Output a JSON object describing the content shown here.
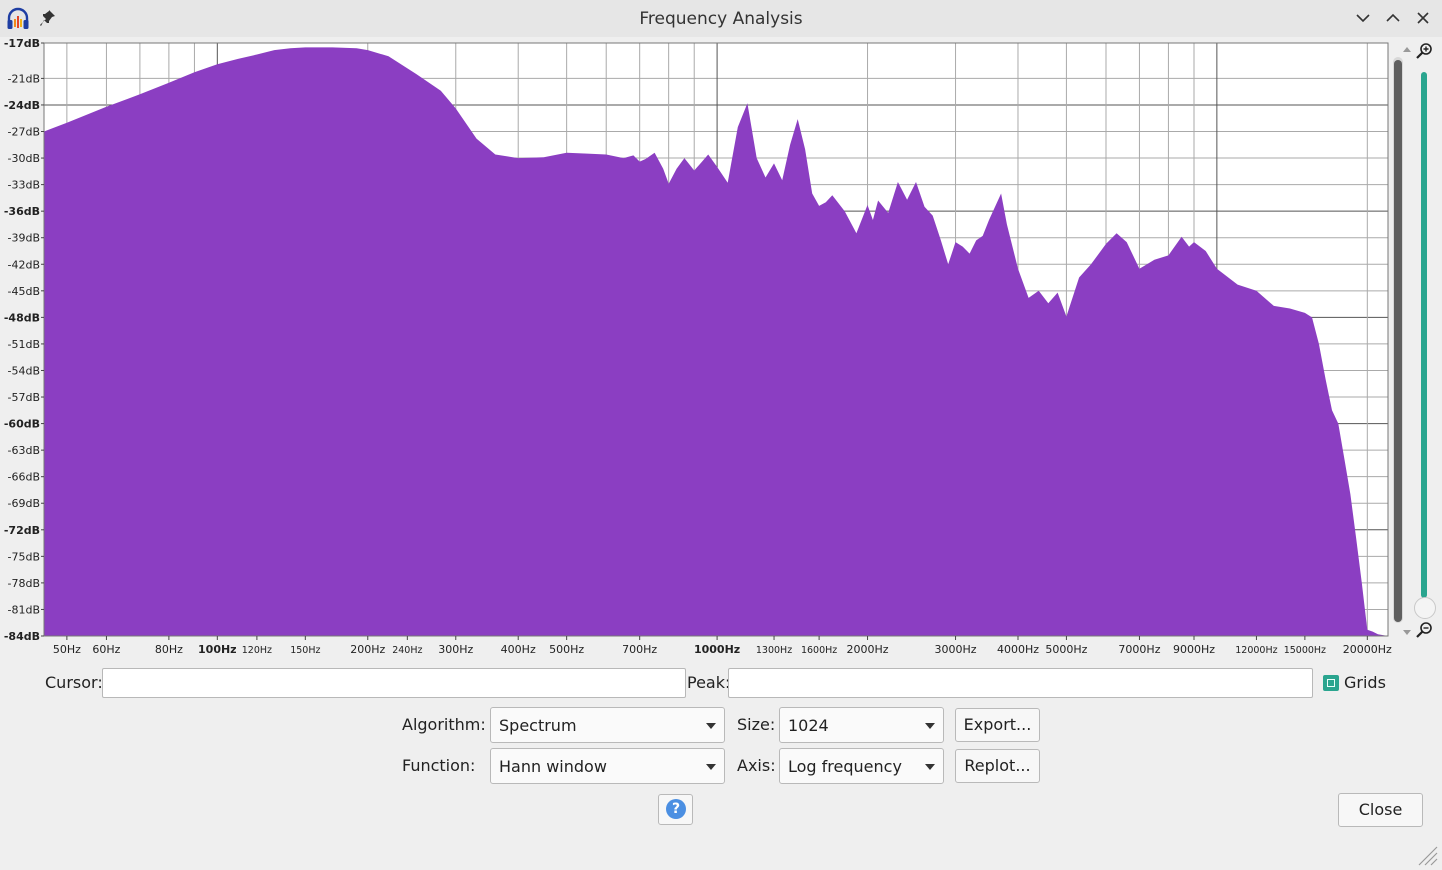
{
  "window": {
    "title": "Frequency Analysis",
    "controls": [
      "minimize",
      "maximize",
      "close"
    ]
  },
  "icons": {
    "app": "headphones-icon",
    "pin": "pin-icon",
    "zoom_in": "zoom-in-icon",
    "zoom_out": "zoom-out-icon",
    "help": "help-icon"
  },
  "colors": {
    "spectrum_fill": "#8b3ec2",
    "accent": "#2aa58f",
    "grid": "#aaaaaa",
    "help_blue": "#4b8fe2"
  },
  "chart_data": {
    "type": "area",
    "x_scale": "log",
    "xlim": [
      45,
      22000
    ],
    "ylim": [
      -84,
      -17
    ],
    "grid": true,
    "y_ticks": [
      "-17dB",
      "-21dB",
      "-24dB",
      "-27dB",
      "-30dB",
      "-33dB",
      "-36dB",
      "-39dB",
      "-42dB",
      "-45dB",
      "-48dB",
      "-51dB",
      "-54dB",
      "-57dB",
      "-60dB",
      "-63dB",
      "-66dB",
      "-69dB",
      "-72dB",
      "-75dB",
      "-78dB",
      "-81dB",
      "-84dB"
    ],
    "y_tick_values": [
      -17,
      -21,
      -24,
      -27,
      -30,
      -33,
      -36,
      -39,
      -42,
      -45,
      -48,
      -51,
      -54,
      -57,
      -60,
      -63,
      -66,
      -69,
      -72,
      -75,
      -78,
      -81,
      -84
    ],
    "y_bold_ticks": [
      "-17dB",
      "-24dB",
      "-36dB",
      "-48dB",
      "-60dB",
      "-72dB",
      "-84dB"
    ],
    "x_ticks": [
      "50Hz",
      "60Hz",
      "80Hz",
      "100Hz",
      "120Hz",
      "150Hz",
      "200Hz",
      "240Hz",
      "300Hz",
      "400Hz",
      "500Hz",
      "700Hz",
      "1000Hz",
      "1300Hz",
      "1600Hz",
      "2000Hz",
      "3000Hz",
      "4000Hz",
      "5000Hz",
      "7000Hz",
      "9000Hz",
      "12000Hz",
      "15000Hz",
      "20000Hz"
    ],
    "x_tick_values": [
      50,
      60,
      80,
      100,
      120,
      150,
      200,
      240,
      300,
      400,
      500,
      700,
      1000,
      1300,
      1600,
      2000,
      3000,
      4000,
      5000,
      7000,
      9000,
      12000,
      15000,
      20000
    ],
    "x_small_ticks": [
      "120Hz",
      "150Hz",
      "240Hz",
      "1300Hz",
      "1600Hz",
      "12000Hz",
      "15000Hz"
    ],
    "x_bold_ticks": [
      "100Hz",
      "1000Hz"
    ],
    "x": [
      45,
      50,
      60,
      70,
      80,
      90,
      100,
      110,
      120,
      130,
      140,
      150,
      170,
      190,
      200,
      220,
      250,
      280,
      300,
      330,
      360,
      400,
      450,
      500,
      550,
      600,
      650,
      680,
      700,
      720,
      750,
      780,
      800,
      830,
      860,
      900,
      930,
      960,
      1000,
      1050,
      1100,
      1150,
      1200,
      1250,
      1300,
      1350,
      1400,
      1450,
      1500,
      1550,
      1600,
      1650,
      1700,
      1800,
      1900,
      2000,
      2050,
      2100,
      2200,
      2300,
      2400,
      2500,
      2600,
      2700,
      2800,
      2900,
      3000,
      3100,
      3200,
      3300,
      3400,
      3500,
      3700,
      3800,
      4000,
      4200,
      4400,
      4600,
      4800,
      5000,
      5300,
      5600,
      6000,
      6300,
      6600,
      7000,
      7500,
      8000,
      8500,
      8800,
      9000,
      9500,
      10000,
      11000,
      12000,
      13000,
      14000,
      15000,
      15500,
      16000,
      16500,
      17000,
      17500,
      18000,
      18500,
      19000,
      19500,
      20000,
      20500,
      21000,
      22000
    ],
    "values": [
      -27.0,
      -26.0,
      -24.2,
      -22.8,
      -21.5,
      -20.3,
      -19.4,
      -18.8,
      -18.3,
      -17.8,
      -17.6,
      -17.5,
      -17.5,
      -17.6,
      -17.8,
      -18.5,
      -20.5,
      -22.4,
      -24.4,
      -27.8,
      -29.6,
      -30.0,
      -29.9,
      -29.4,
      -29.5,
      -29.6,
      -30.0,
      -29.7,
      -30.4,
      -30.1,
      -29.4,
      -31.2,
      -32.9,
      -31.2,
      -30.0,
      -31.4,
      -30.5,
      -29.6,
      -31.0,
      -32.8,
      -26.5,
      -23.8,
      -30.0,
      -32.2,
      -30.6,
      -32.5,
      -28.5,
      -25.6,
      -29.0,
      -34.0,
      -35.4,
      -35.0,
      -34.2,
      -36.0,
      -38.5,
      -35.3,
      -37.0,
      -34.8,
      -36.2,
      -32.7,
      -34.7,
      -32.7,
      -35.5,
      -36.5,
      -39.2,
      -42.0,
      -39.5,
      -40.0,
      -40.8,
      -39.3,
      -38.8,
      -37.0,
      -34.0,
      -37.5,
      -42.5,
      -45.8,
      -45.0,
      -46.4,
      -45.2,
      -47.9,
      -43.5,
      -42.0,
      -39.7,
      -38.5,
      -39.5,
      -42.5,
      -41.5,
      -41.0,
      -38.9,
      -40.0,
      -39.5,
      -40.5,
      -42.5,
      -44.3,
      -45.0,
      -46.7,
      -47.0,
      -47.5,
      -48.0,
      -51.0,
      -55.0,
      -58.5,
      -60.0,
      -64.0,
      -68.0,
      -73.0,
      -78.0,
      -83.3,
      -83.5,
      -83.8,
      -84.0
    ]
  },
  "controls": {
    "cursor_label": "Cursor:",
    "cursor_value": "",
    "peak_label": "Peak:",
    "peak_value": "",
    "grids_label": "Grids",
    "grids_checked": true,
    "algorithm_label": "Algorithm:",
    "algorithm_value": "Spectrum",
    "size_label": "Size:",
    "size_value": "1024",
    "export_label": "Export...",
    "function_label": "Function:",
    "function_value": "Hann window",
    "axis_label": "Axis:",
    "axis_value": "Log frequency",
    "replot_label": "Replot...",
    "help_label": "?",
    "close_label": "Close"
  }
}
